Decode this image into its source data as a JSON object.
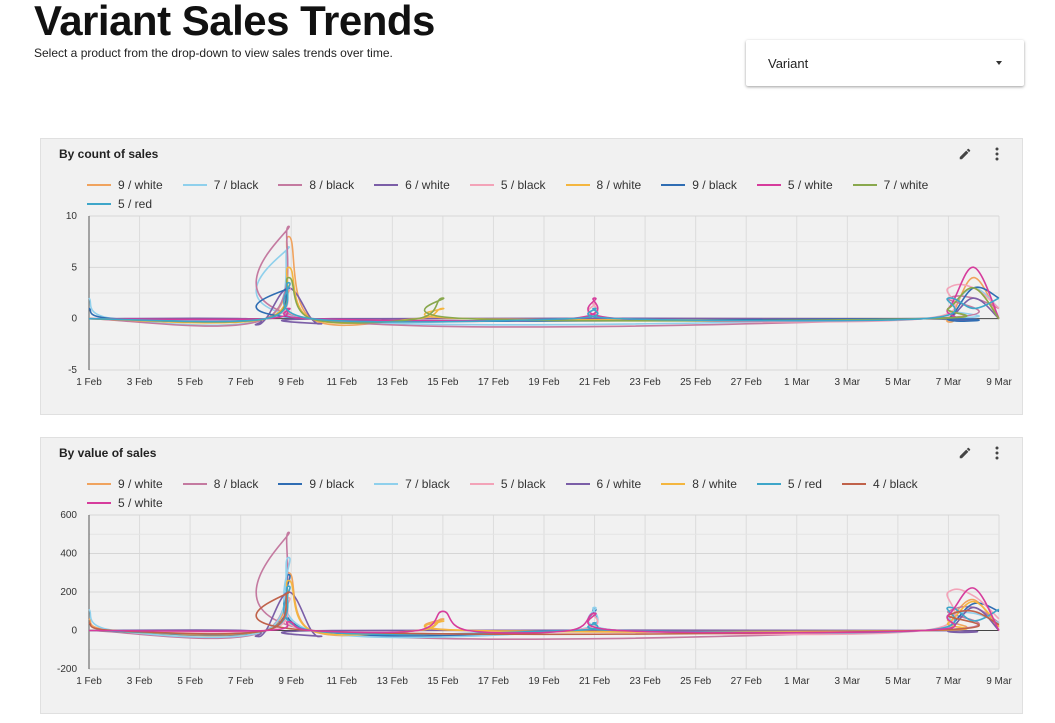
{
  "header": {
    "title": "Variant Sales Trends",
    "subtitle": "Select a product from the drop-down to view sales trends over time."
  },
  "variant_select": {
    "label": "Variant"
  },
  "icons": {
    "edit": "pencil-icon",
    "more": "more-vert-icon",
    "dropdown": "caret-down-icon"
  },
  "x_ticks": [
    "1 Feb",
    "3 Feb",
    "5 Feb",
    "7 Feb",
    "9 Feb",
    "11 Feb",
    "13 Feb",
    "15 Feb",
    "17 Feb",
    "19 Feb",
    "21 Feb",
    "23 Feb",
    "25 Feb",
    "27 Feb",
    "1 Mar",
    "3 Mar",
    "5 Mar",
    "7 Mar",
    "9 Mar"
  ],
  "colors": {
    "9 / white": "#f0a35e",
    "7 / black": "#8fd0ec",
    "8 / black": "#c47aa0",
    "6 / white": "#7b5ea7",
    "5 / black": "#f3a3b8",
    "8 / white": "#f4b63f",
    "9 / black": "#2f6db3",
    "5 / white": "#d63c9c",
    "7 / white": "#89a84d",
    "5 / red": "#3ea6c9",
    "4 / black": "#c0624a"
  },
  "chart_data": [
    {
      "type": "line",
      "title": "By count of sales",
      "ylim": [
        -5,
        10
      ],
      "yticks": [
        -5,
        0,
        5,
        10
      ],
      "xlim": [
        0,
        36
      ],
      "legend": [
        "9 / white",
        "7 / black",
        "8 / black",
        "6 / white",
        "5 / black",
        "8 / white",
        "9 / black",
        "5 / white",
        "7 / white",
        "5 / red"
      ],
      "series": [
        {
          "name": "9 / white",
          "points": [
            [
              0,
              0
            ],
            [
              7,
              0
            ],
            [
              7.9,
              8
            ],
            [
              8.8,
              0
            ],
            [
              13,
              0
            ],
            [
              14,
              0
            ],
            [
              15,
              0
            ],
            [
              22,
              0
            ],
            [
              33,
              0
            ],
            [
              34,
              0
            ],
            [
              35,
              4
            ],
            [
              36,
              0
            ]
          ]
        },
        {
          "name": "7 / black",
          "points": [
            [
              0,
              2
            ],
            [
              1,
              0
            ],
            [
              7,
              0
            ],
            [
              7.9,
              7
            ],
            [
              8.8,
              0
            ],
            [
              33,
              0
            ],
            [
              34,
              1
            ],
            [
              35,
              3
            ],
            [
              36,
              1
            ]
          ]
        },
        {
          "name": "8 / black",
          "points": [
            [
              0,
              0
            ],
            [
              7,
              0
            ],
            [
              7.9,
              9
            ],
            [
              8.8,
              0
            ],
            [
              33,
              0
            ],
            [
              34,
              2
            ],
            [
              35,
              2
            ],
            [
              36,
              1
            ]
          ]
        },
        {
          "name": "6 / white",
          "points": [
            [
              0,
              0
            ],
            [
              6.2,
              0
            ],
            [
              6.6,
              -0.6
            ],
            [
              7,
              0
            ],
            [
              7.9,
              3
            ],
            [
              8.8,
              0
            ],
            [
              9.2,
              -0.5
            ],
            [
              9.6,
              0
            ],
            [
              33,
              0
            ],
            [
              34,
              0
            ],
            [
              35,
              2
            ],
            [
              36,
              0
            ]
          ]
        },
        {
          "name": "5 / black",
          "points": [
            [
              0,
              0
            ],
            [
              7,
              0
            ],
            [
              7.9,
              3
            ],
            [
              8.8,
              0
            ],
            [
              19,
              0
            ],
            [
              20,
              1.5
            ],
            [
              21,
              0
            ],
            [
              33,
              0
            ],
            [
              34,
              3
            ],
            [
              35,
              3
            ],
            [
              36,
              1
            ]
          ]
        },
        {
          "name": "8 / white",
          "points": [
            [
              0,
              0
            ],
            [
              7,
              0
            ],
            [
              7.9,
              5
            ],
            [
              8.8,
              0
            ],
            [
              13,
              0
            ],
            [
              14,
              1
            ],
            [
              15,
              0
            ],
            [
              33,
              0
            ],
            [
              34,
              1
            ],
            [
              35,
              3
            ],
            [
              36,
              0
            ]
          ]
        },
        {
          "name": "9 / black",
          "points": [
            [
              0,
              1
            ],
            [
              1,
              0
            ],
            [
              7,
              0
            ],
            [
              7.9,
              3
            ],
            [
              8.8,
              0
            ],
            [
              33,
              0
            ],
            [
              34,
              0
            ],
            [
              35,
              3
            ],
            [
              36,
              2
            ]
          ]
        },
        {
          "name": "5 / white",
          "points": [
            [
              0,
              0
            ],
            [
              7,
              0
            ],
            [
              7.9,
              1
            ],
            [
              8.8,
              0
            ],
            [
              19,
              0
            ],
            [
              20,
              2
            ],
            [
              21,
              0
            ],
            [
              33,
              0
            ],
            [
              34,
              1
            ],
            [
              35,
              5
            ],
            [
              36,
              0
            ]
          ]
        },
        {
          "name": "7 / white",
          "points": [
            [
              0,
              0
            ],
            [
              7,
              0
            ],
            [
              7.9,
              4
            ],
            [
              8.8,
              0
            ],
            [
              13,
              0
            ],
            [
              14,
              2
            ],
            [
              15,
              0
            ],
            [
              33,
              0
            ],
            [
              34,
              1
            ],
            [
              35,
              3
            ],
            [
              36,
              0
            ]
          ]
        },
        {
          "name": "5 / red",
          "points": [
            [
              0,
              0
            ],
            [
              7,
              0
            ],
            [
              7.9,
              3.5
            ],
            [
              8.8,
              0
            ],
            [
              19,
              0
            ],
            [
              20,
              1
            ],
            [
              21,
              0
            ],
            [
              33,
              0
            ],
            [
              34,
              2
            ],
            [
              35,
              1
            ],
            [
              36,
              2
            ]
          ]
        }
      ]
    },
    {
      "type": "line",
      "title": "By value of sales",
      "ylim": [
        -200,
        600
      ],
      "yticks": [
        -200,
        0,
        200,
        400,
        600
      ],
      "xlim": [
        0,
        36
      ],
      "legend": [
        "9 / white",
        "8 / black",
        "9 / black",
        "7 / black",
        "5 / black",
        "6 / white",
        "8 / white",
        "5 / red",
        "4 / black",
        "5 / white"
      ],
      "series": [
        {
          "name": "9 / white",
          "points": [
            [
              0,
              60
            ],
            [
              1,
              0
            ],
            [
              7,
              0
            ],
            [
              7.9,
              300
            ],
            [
              8.8,
              0
            ],
            [
              13,
              0
            ],
            [
              14,
              60
            ],
            [
              15,
              0
            ],
            [
              33,
              0
            ],
            [
              34,
              60
            ],
            [
              35,
              160
            ],
            [
              36,
              0
            ]
          ]
        },
        {
          "name": "8 / black",
          "points": [
            [
              0,
              0
            ],
            [
              7,
              0
            ],
            [
              7.9,
              510
            ],
            [
              8.8,
              0
            ],
            [
              33,
              0
            ],
            [
              34,
              100
            ],
            [
              35,
              120
            ],
            [
              36,
              40
            ]
          ]
        },
        {
          "name": "9 / black",
          "points": [
            [
              0,
              0
            ],
            [
              7,
              0
            ],
            [
              7.9,
              290
            ],
            [
              8.8,
              0
            ],
            [
              19,
              0
            ],
            [
              20,
              110
            ],
            [
              21,
              0
            ],
            [
              33,
              0
            ],
            [
              34,
              20
            ],
            [
              35,
              140
            ],
            [
              36,
              100
            ]
          ]
        },
        {
          "name": "7 / black",
          "points": [
            [
              0,
              110
            ],
            [
              1,
              0
            ],
            [
              7,
              0
            ],
            [
              7.9,
              380
            ],
            [
              8.8,
              0
            ],
            [
              19,
              0
            ],
            [
              20,
              120
            ],
            [
              21,
              0
            ],
            [
              33,
              0
            ],
            [
              34,
              80
            ],
            [
              35,
              90
            ],
            [
              36,
              40
            ]
          ]
        },
        {
          "name": "5 / black",
          "points": [
            [
              0,
              0
            ],
            [
              7,
              0
            ],
            [
              7.9,
              170
            ],
            [
              8.8,
              0
            ],
            [
              19,
              0
            ],
            [
              20,
              90
            ],
            [
              21,
              0
            ],
            [
              33,
              0
            ],
            [
              34,
              200
            ],
            [
              35,
              180
            ],
            [
              36,
              60
            ]
          ]
        },
        {
          "name": "6 / white",
          "points": [
            [
              0,
              0
            ],
            [
              6.2,
              0
            ],
            [
              6.6,
              -30
            ],
            [
              7,
              0
            ],
            [
              7.9,
              200
            ],
            [
              8.8,
              0
            ],
            [
              9.2,
              -30
            ],
            [
              9.6,
              0
            ],
            [
              33,
              0
            ],
            [
              34,
              0
            ],
            [
              35,
              120
            ],
            [
              36,
              0
            ]
          ]
        },
        {
          "name": "8 / white",
          "points": [
            [
              0,
              0
            ],
            [
              7,
              0
            ],
            [
              7.9,
              260
            ],
            [
              8.8,
              0
            ],
            [
              13,
              0
            ],
            [
              14,
              50
            ],
            [
              15,
              0
            ],
            [
              33,
              0
            ],
            [
              34,
              40
            ],
            [
              35,
              150
            ],
            [
              36,
              20
            ]
          ]
        },
        {
          "name": "5 / red",
          "points": [
            [
              0,
              0
            ],
            [
              7,
              0
            ],
            [
              7.9,
              230
            ],
            [
              8.8,
              0
            ],
            [
              19,
              0
            ],
            [
              20,
              40
            ],
            [
              21,
              0
            ],
            [
              33,
              0
            ],
            [
              34,
              120
            ],
            [
              35,
              50
            ],
            [
              36,
              110
            ]
          ]
        },
        {
          "name": "4 / black",
          "points": [
            [
              0,
              40
            ],
            [
              1,
              0
            ],
            [
              7,
              0
            ],
            [
              7.9,
              200
            ],
            [
              8.8,
              0
            ],
            [
              33,
              0
            ],
            [
              34,
              80
            ],
            [
              35,
              100
            ],
            [
              36,
              30
            ]
          ]
        },
        {
          "name": "5 / white",
          "points": [
            [
              0,
              0
            ],
            [
              7,
              0
            ],
            [
              7.9,
              45
            ],
            [
              8.8,
              0
            ],
            [
              13,
              0
            ],
            [
              14,
              100
            ],
            [
              15,
              0
            ],
            [
              19,
              0
            ],
            [
              20,
              90
            ],
            [
              21,
              0
            ],
            [
              33,
              0
            ],
            [
              34,
              80
            ],
            [
              35,
              220
            ],
            [
              36,
              0
            ]
          ]
        }
      ]
    }
  ]
}
